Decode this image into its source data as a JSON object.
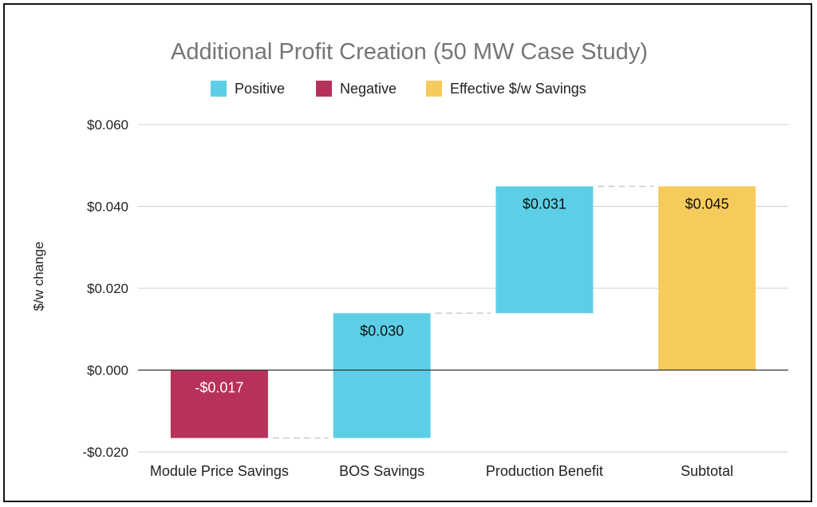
{
  "chart_data": {
    "type": "waterfall",
    "title": "Additional Profit Creation (50 MW Case Study)",
    "ylabel": "$/w change",
    "xlabel": "",
    "ylim": [
      -0.02,
      0.06
    ],
    "yticks": [
      -0.02,
      0.0,
      0.02,
      0.04,
      0.06
    ],
    "ytick_labels": [
      "-$0.020",
      "$0.000",
      "$0.020",
      "$0.040",
      "$0.060"
    ],
    "legend": {
      "position": "top-center",
      "entries": [
        {
          "name": "Positive",
          "color": "#5ccfe6"
        },
        {
          "name": "Negative",
          "color": "#b7325a"
        },
        {
          "name": "Effective $/w Savings",
          "color": "#f5cb5c"
        }
      ]
    },
    "categories": [
      "Module Price Savings",
      "BOS Savings",
      "Production Benefit",
      "Subtotal"
    ],
    "bars": [
      {
        "category": "Module Price Savings",
        "kind": "Negative",
        "start": 0.0,
        "end": -0.0166,
        "label": "-$0.017"
      },
      {
        "category": "BOS Savings",
        "kind": "Positive",
        "start": -0.0166,
        "end": 0.0139,
        "label": "$0.030"
      },
      {
        "category": "Production Benefit",
        "kind": "Positive",
        "start": 0.0139,
        "end": 0.0449,
        "label": "$0.031"
      },
      {
        "category": "Subtotal",
        "kind": "Effective $/w Savings",
        "start": 0.0,
        "end": 0.0449,
        "label": "$0.045"
      }
    ],
    "grid": true,
    "connectors": true
  }
}
